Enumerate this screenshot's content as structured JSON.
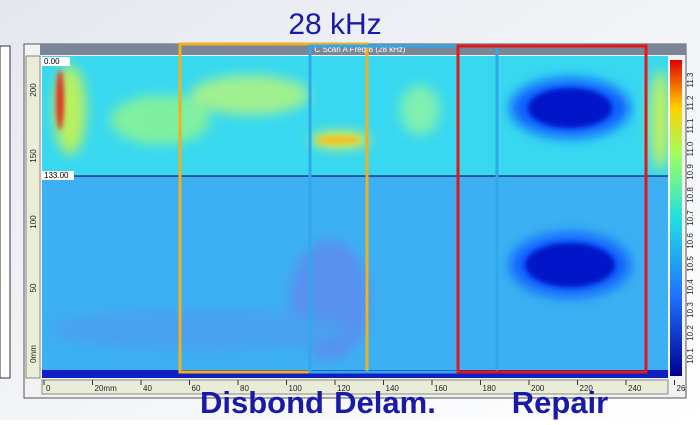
{
  "header": {
    "title": "28 kHz"
  },
  "scan": {
    "title": "C Scan A Freq-8 (28 kHz)",
    "origin_label": "0.00",
    "cursor_label": "133.00",
    "left_ticks": [
      "200",
      "150",
      "100",
      "50",
      "0mm"
    ],
    "bottom_ticks": [
      "0",
      "20mm",
      "40",
      "60",
      "80",
      "100",
      "120",
      "140",
      "160",
      "180",
      "200",
      "220",
      "240",
      "26"
    ],
    "colorbar_ticks": [
      "10.1",
      "10.2",
      "10.3",
      "10.4",
      "10.5",
      "10.6",
      "10.7",
      "10.8",
      "10.9",
      "11.0",
      "11.1",
      "11.2",
      "11.3"
    ]
  },
  "regions": [
    {
      "label": "Disbond"
    },
    {
      "label": "Delam."
    },
    {
      "label": "Repair"
    }
  ]
}
